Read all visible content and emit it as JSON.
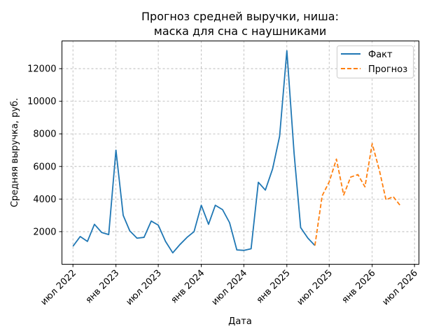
{
  "chart_data": {
    "type": "line",
    "title_lines": [
      "Прогноз средней выручки, ниша:",
      "маска для сна с наушниками"
    ],
    "xlabel": "Дата",
    "ylabel": "Средняя выручка, руб.",
    "xlim": [
      "2022-05-15",
      "2026-07-20"
    ],
    "ylim": [
      0,
      13700
    ],
    "grid": true,
    "legend_position": "top-right",
    "x_ticks": [
      {
        "date": "2022-07-01",
        "label": "июл 2022"
      },
      {
        "date": "2023-01-01",
        "label": "янв 2023"
      },
      {
        "date": "2023-07-01",
        "label": "июл 2023"
      },
      {
        "date": "2024-01-01",
        "label": "янв 2024"
      },
      {
        "date": "2024-07-01",
        "label": "июл 2024"
      },
      {
        "date": "2025-01-01",
        "label": "янв 2025"
      },
      {
        "date": "2025-07-01",
        "label": "июл 2025"
      },
      {
        "date": "2026-01-01",
        "label": "янв 2026"
      },
      {
        "date": "2026-07-01",
        "label": "июл 2026"
      }
    ],
    "y_ticks": [
      {
        "value": 2000,
        "label": "2000"
      },
      {
        "value": 4000,
        "label": "4000"
      },
      {
        "value": 6000,
        "label": "6000"
      },
      {
        "value": 8000,
        "label": "8000"
      },
      {
        "value": 10000,
        "label": "10000"
      },
      {
        "value": 12000,
        "label": "12000"
      }
    ],
    "series": [
      {
        "name": "Факт",
        "color": "#1f77b4",
        "style": "solid",
        "points": [
          [
            "2022-07-01",
            1100
          ],
          [
            "2022-08-01",
            1700
          ],
          [
            "2022-09-01",
            1400
          ],
          [
            "2022-10-01",
            2450
          ],
          [
            "2022-11-01",
            1950
          ],
          [
            "2022-12-01",
            1820
          ],
          [
            "2023-01-01",
            7000
          ],
          [
            "2023-02-01",
            3000
          ],
          [
            "2023-03-01",
            2050
          ],
          [
            "2023-04-01",
            1600
          ],
          [
            "2023-05-01",
            1650
          ],
          [
            "2023-06-01",
            2650
          ],
          [
            "2023-07-01",
            2400
          ],
          [
            "2023-08-01",
            1400
          ],
          [
            "2023-09-01",
            700
          ],
          [
            "2023-10-01",
            1200
          ],
          [
            "2023-11-01",
            1650
          ],
          [
            "2023-12-01",
            2000
          ],
          [
            "2024-01-01",
            3620
          ],
          [
            "2024-02-01",
            2450
          ],
          [
            "2024-03-01",
            3620
          ],
          [
            "2024-04-01",
            3350
          ],
          [
            "2024-05-01",
            2550
          ],
          [
            "2024-06-01",
            880
          ],
          [
            "2024-07-01",
            850
          ],
          [
            "2024-08-01",
            950
          ],
          [
            "2024-09-01",
            5030
          ],
          [
            "2024-10-01",
            4550
          ],
          [
            "2024-11-01",
            5850
          ],
          [
            "2024-12-01",
            7850
          ],
          [
            "2025-01-01",
            13100
          ],
          [
            "2025-02-01",
            6800
          ],
          [
            "2025-03-01",
            2250
          ],
          [
            "2025-04-01",
            1600
          ],
          [
            "2025-05-01",
            1150
          ]
        ]
      },
      {
        "name": "Прогноз",
        "color": "#ff7f0e",
        "style": "dashed",
        "points": [
          [
            "2025-05-01",
            1150
          ],
          [
            "2025-06-01",
            4200
          ],
          [
            "2025-07-01",
            5050
          ],
          [
            "2025-08-01",
            6450
          ],
          [
            "2025-09-01",
            4250
          ],
          [
            "2025-10-01",
            5350
          ],
          [
            "2025-11-01",
            5500
          ],
          [
            "2025-12-01",
            4750
          ],
          [
            "2026-01-01",
            7400
          ],
          [
            "2026-02-01",
            5750
          ],
          [
            "2026-03-01",
            3950
          ],
          [
            "2026-04-01",
            4150
          ],
          [
            "2026-05-01",
            3600
          ]
        ]
      }
    ]
  }
}
